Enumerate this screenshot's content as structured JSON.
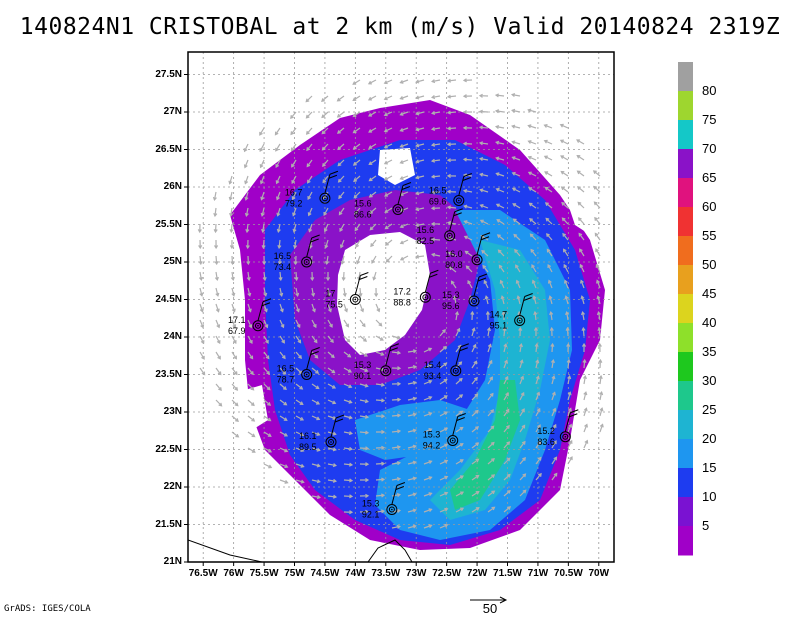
{
  "title": "140824N1 CRISTOBAL at 2 km (m/s) Valid 20140824 2319Z",
  "credit": "GrADS: IGES/COLA",
  "reference_vector": "50",
  "lat_ticks": [
    "27.5N",
    "27N",
    "26.5N",
    "26N",
    "25.5N",
    "25N",
    "24.5N",
    "24N",
    "23.5N",
    "23N",
    "22.5N",
    "22N",
    "21.5N",
    "21N"
  ],
  "lon_ticks": [
    "76.5W",
    "76W",
    "75.5W",
    "75W",
    "74.5W",
    "74W",
    "73.5W",
    "73W",
    "72.5W",
    "72W",
    "71.5W",
    "71W",
    "70.5W",
    "70W"
  ],
  "colorbar": {
    "labels": [
      "80",
      "75",
      "70",
      "65",
      "60",
      "55",
      "50",
      "45",
      "40",
      "35",
      "30",
      "25",
      "20",
      "15",
      "10",
      "5"
    ],
    "colors": [
      "#a0a0a0",
      "#9ed62f",
      "#14c8c8",
      "#8a12c8",
      "#e0127e",
      "#f03232",
      "#f06d1e",
      "#e8a01e",
      "#dcd41e",
      "#8ee02a",
      "#1ec81e",
      "#1ec88c",
      "#1eb4d2",
      "#1e96f0",
      "#1e3cf0",
      "#7a12d2",
      "#a000c8"
    ]
  },
  "observations": [
    {
      "lon": -74.5,
      "lat": 25.85,
      "temp": "16.7",
      "rh": "79.2",
      "lx": -40,
      "ly": 0
    },
    {
      "lon": -73.3,
      "lat": 25.7,
      "temp": "15.6",
      "rh": "86.6",
      "lx": -44,
      "ly": 0
    },
    {
      "lon": -72.3,
      "lat": 25.82,
      "temp": "16.5",
      "rh": "69.6",
      "lx": -30,
      "ly": -4
    },
    {
      "lon": -72.45,
      "lat": 25.35,
      "temp": "15.6",
      "rh": "82.5",
      "lx": -33,
      "ly": 0
    },
    {
      "lon": -74.8,
      "lat": 25.0,
      "temp": "16.5",
      "rh": "73.4",
      "lx": -33,
      "ly": 0
    },
    {
      "lon": -72.0,
      "lat": 25.03,
      "temp": "16.0",
      "rh": "80.8",
      "lx": -32,
      "ly": 0
    },
    {
      "lon": -74.0,
      "lat": 24.5,
      "temp": "17",
      "rh": "75.5",
      "lx": -30,
      "ly": 0
    },
    {
      "lon": -72.85,
      "lat": 24.53,
      "temp": "17.2",
      "rh": "88.8",
      "lx": -32,
      "ly": 0
    },
    {
      "lon": -72.05,
      "lat": 24.48,
      "temp": "15.3",
      "rh": "95.6",
      "lx": -32,
      "ly": 0
    },
    {
      "lon": -75.6,
      "lat": 24.15,
      "temp": "17.1",
      "rh": "67.9",
      "lx": -30,
      "ly": 0
    },
    {
      "lon": -71.3,
      "lat": 24.22,
      "temp": "14.7",
      "rh": "95.1",
      "lx": -30,
      "ly": 0
    },
    {
      "lon": -74.8,
      "lat": 23.5,
      "temp": "16.5",
      "rh": "78.7",
      "lx": -30,
      "ly": 0
    },
    {
      "lon": -73.5,
      "lat": 23.55,
      "temp": "15.3",
      "rh": "90.1",
      "lx": -32,
      "ly": 0
    },
    {
      "lon": -72.35,
      "lat": 23.55,
      "temp": "15.4",
      "rh": "93.4",
      "lx": -32,
      "ly": 0
    },
    {
      "lon": -74.4,
      "lat": 22.6,
      "temp": "16.1",
      "rh": "89.5",
      "lx": -32,
      "ly": 0
    },
    {
      "lon": -72.4,
      "lat": 22.62,
      "temp": "15.3",
      "rh": "94.2",
      "lx": -30,
      "ly": 0
    },
    {
      "lon": -70.55,
      "lat": 22.67,
      "temp": "15.2",
      "rh": "83.6",
      "lx": -28,
      "ly": 0
    },
    {
      "lon": -73.4,
      "lat": 21.7,
      "temp": "15.3",
      "rh": "92.1",
      "lx": -30,
      "ly": 0
    }
  ]
}
